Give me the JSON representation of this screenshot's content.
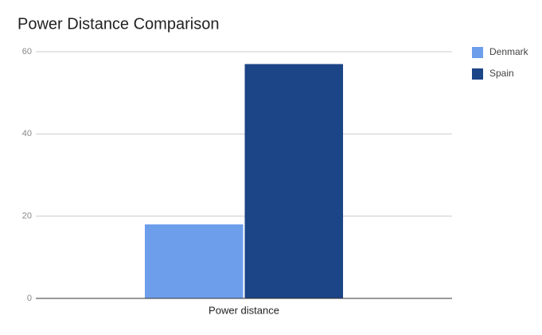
{
  "chart_data": {
    "type": "bar",
    "title": "Power Distance Comparison",
    "categories": [
      "Power distance"
    ],
    "series": [
      {
        "name": "Denmark",
        "color": "#6d9eeb",
        "values": [
          18
        ]
      },
      {
        "name": "Spain",
        "color": "#1c4587",
        "values": [
          57
        ]
      }
    ],
    "ylim": [
      0,
      60
    ],
    "yticks": [
      0,
      20,
      40,
      60
    ],
    "grid": true,
    "legend": "right"
  }
}
